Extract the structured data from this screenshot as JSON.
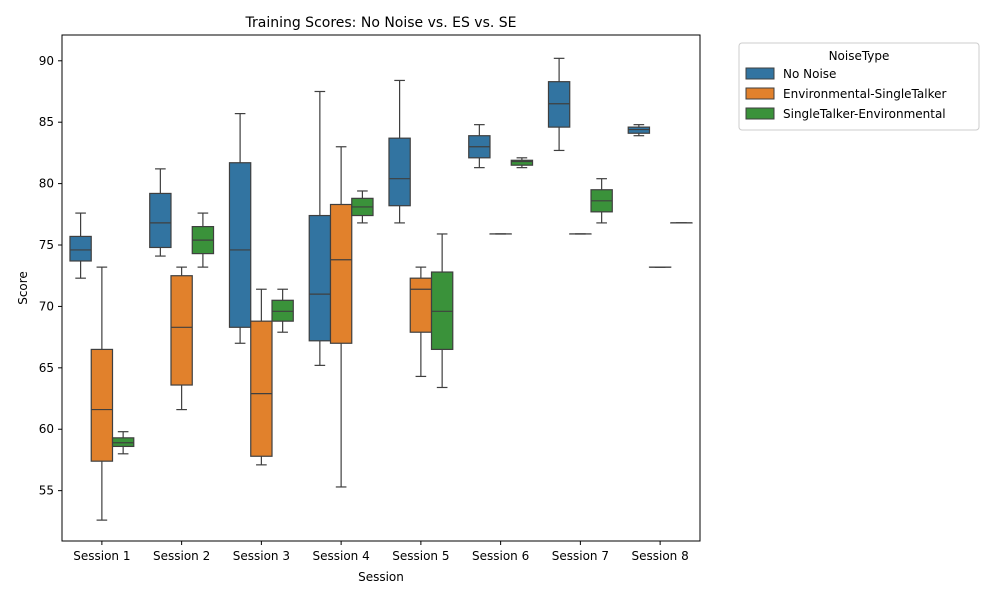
{
  "chart_data": {
    "type": "box",
    "title": "Training Scores: No Noise vs. ES vs. SE",
    "xlabel": "Session",
    "ylabel": "Score",
    "ylim": [
      50.9,
      92.1
    ],
    "yticks": [
      55,
      60,
      65,
      70,
      75,
      80,
      85,
      90
    ],
    "grid": false,
    "legend": {
      "title": "NoiseType",
      "placement": "outside-top-right"
    },
    "categories": [
      "Session 1",
      "Session 2",
      "Session 3",
      "Session 4",
      "Session 5",
      "Session 6",
      "Session 7",
      "Session 8"
    ],
    "series": [
      {
        "name": "No Noise",
        "color": "#3274a1",
        "boxes": [
          {
            "whisker_low": 72.3,
            "q1": 73.7,
            "median": 74.6,
            "q3": 75.7,
            "whisker_high": 77.6
          },
          {
            "whisker_low": 74.1,
            "q1": 74.8,
            "median": 76.8,
            "q3": 79.2,
            "whisker_high": 81.2
          },
          {
            "whisker_low": 67.0,
            "q1": 68.3,
            "median": 74.6,
            "q3": 81.7,
            "whisker_high": 85.7
          },
          {
            "whisker_low": 65.2,
            "q1": 67.2,
            "median": 71.0,
            "q3": 77.4,
            "whisker_high": 87.5
          },
          {
            "whisker_low": 76.8,
            "q1": 78.2,
            "median": 80.4,
            "q3": 83.7,
            "whisker_high": 88.4
          },
          {
            "whisker_low": 81.3,
            "q1": 82.1,
            "median": 83.0,
            "q3": 83.9,
            "whisker_high": 84.8
          },
          {
            "whisker_low": 82.7,
            "q1": 84.6,
            "median": 86.5,
            "q3": 88.3,
            "whisker_high": 90.2
          },
          {
            "whisker_low": 83.9,
            "q1": 84.1,
            "median": 84.4,
            "q3": 84.6,
            "whisker_high": 84.8
          }
        ]
      },
      {
        "name": "Environmental-SingleTalker",
        "color": "#e1812c",
        "boxes": [
          {
            "whisker_low": 52.6,
            "q1": 57.4,
            "median": 61.6,
            "q3": 66.5,
            "whisker_high": 73.2
          },
          {
            "whisker_low": 61.6,
            "q1": 63.6,
            "median": 68.3,
            "q3": 72.5,
            "whisker_high": 73.2
          },
          {
            "whisker_low": 57.1,
            "q1": 57.8,
            "median": 62.9,
            "q3": 68.8,
            "whisker_high": 71.4
          },
          {
            "whisker_low": 55.3,
            "q1": 67.0,
            "median": 73.8,
            "q3": 78.3,
            "whisker_high": 83.0
          },
          {
            "whisker_low": 64.3,
            "q1": 67.9,
            "median": 71.4,
            "q3": 72.3,
            "whisker_high": 73.2
          },
          {
            "whisker_low": 75.9,
            "q1": 75.9,
            "median": 75.9,
            "q3": 75.9,
            "whisker_high": 75.9
          },
          {
            "whisker_low": 75.9,
            "q1": 75.9,
            "median": 75.9,
            "q3": 75.9,
            "whisker_high": 75.9
          },
          {
            "whisker_low": 73.2,
            "q1": 73.2,
            "median": 73.2,
            "q3": 73.2,
            "whisker_high": 73.2
          }
        ]
      },
      {
        "name": "SingleTalker-Environmental",
        "color": "#3a923a",
        "boxes": [
          {
            "whisker_low": 58.0,
            "q1": 58.6,
            "median": 58.9,
            "q3": 59.3,
            "whisker_high": 59.8
          },
          {
            "whisker_low": 73.2,
            "q1": 74.3,
            "median": 75.4,
            "q3": 76.5,
            "whisker_high": 77.6
          },
          {
            "whisker_low": 67.9,
            "q1": 68.8,
            "median": 69.6,
            "q3": 70.5,
            "whisker_high": 71.4
          },
          {
            "whisker_low": 76.8,
            "q1": 77.4,
            "median": 78.1,
            "q3": 78.8,
            "whisker_high": 79.4
          },
          {
            "whisker_low": 63.4,
            "q1": 66.5,
            "median": 69.6,
            "q3": 72.8,
            "whisker_high": 75.9
          },
          {
            "whisker_low": 81.3,
            "q1": 81.5,
            "median": 81.8,
            "q3": 81.9,
            "whisker_high": 82.1
          },
          {
            "whisker_low": 76.8,
            "q1": 77.7,
            "median": 78.6,
            "q3": 79.5,
            "whisker_high": 80.4
          },
          {
            "whisker_low": 76.8,
            "q1": 76.8,
            "median": 76.8,
            "q3": 76.8,
            "whisker_high": 76.8
          }
        ]
      }
    ]
  }
}
